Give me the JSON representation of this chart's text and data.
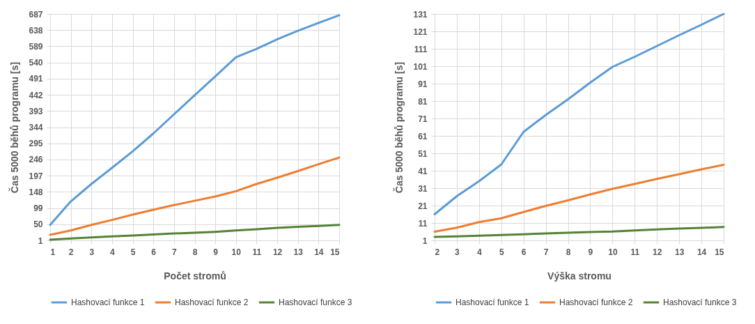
{
  "chart_data": [
    {
      "type": "line",
      "xlabel": "Počet stromů",
      "ylabel": "Čas 5000 běhů programu [s]",
      "x": [
        1,
        2,
        3,
        4,
        5,
        6,
        7,
        8,
        9,
        10,
        11,
        12,
        13,
        14,
        15
      ],
      "xlim": [
        1,
        15
      ],
      "xticks": [
        1,
        2,
        3,
        4,
        5,
        6,
        7,
        8,
        9,
        10,
        11,
        12,
        13,
        14,
        15
      ],
      "ylim": [
        1,
        687
      ],
      "yticks": [
        1,
        50,
        99,
        148,
        197,
        246,
        295,
        344,
        393,
        442,
        491,
        540,
        589,
        638,
        687
      ],
      "grid": true,
      "legend": "bottom",
      "series": [
        {
          "name": "Hashovací funkce 1",
          "color": "#5b9bd5",
          "values": [
            48,
            119,
            172,
            221,
            271,
            325,
            383,
            441,
            498,
            556,
            581,
            610,
            636,
            660,
            683
          ]
        },
        {
          "name": "Hashovací funkce 2",
          "color": "#ed7d31",
          "values": [
            18,
            31,
            48,
            63,
            79,
            94,
            108,
            121,
            134,
            150,
            172,
            191,
            211,
            232,
            252
          ]
        },
        {
          "name": "Hashovací funkce 3",
          "color": "#548235",
          "values": [
            3,
            7,
            10,
            13,
            16,
            19,
            22,
            24,
            27,
            31,
            35,
            39,
            42,
            45,
            48
          ]
        }
      ]
    },
    {
      "type": "line",
      "xlabel": "Výška stromu",
      "ylabel": "Čas 5000 běhů programu [s]",
      "x": [
        2,
        3,
        4,
        5,
        6,
        7,
        8,
        9,
        10,
        11,
        12,
        13,
        14,
        15
      ],
      "xlim": [
        2,
        15
      ],
      "xticks": [
        2,
        3,
        4,
        5,
        6,
        7,
        8,
        9,
        10,
        11,
        12,
        13,
        14,
        15
      ],
      "ylim": [
        1,
        131
      ],
      "yticks": [
        1,
        11,
        21,
        31,
        41,
        51,
        61,
        71,
        81,
        91,
        101,
        111,
        121,
        131
      ],
      "grid": true,
      "legend": "bottom",
      "series": [
        {
          "name": "Hashovací funkce 1",
          "color": "#5b9bd5",
          "values": [
            16,
            26.4,
            35,
            44.6,
            63.3,
            73,
            82,
            91.6,
            100.6,
            106.4,
            112.6,
            118.8,
            124.8,
            131
          ]
        },
        {
          "name": "Hashovací funkce 2",
          "color": "#ed7d31",
          "values": [
            6,
            8.3,
            11.5,
            13.7,
            17.3,
            20.8,
            24,
            27.4,
            30.6,
            33.4,
            36.3,
            39,
            41.8,
            44.4
          ]
        },
        {
          "name": "Hashovací funkce 3",
          "color": "#548235",
          "values": [
            3,
            3.3,
            3.7,
            4.1,
            4.5,
            5,
            5.4,
            5.8,
            6.1,
            6.7,
            7.3,
            7.8,
            8.2,
            8.7
          ]
        }
      ]
    }
  ]
}
